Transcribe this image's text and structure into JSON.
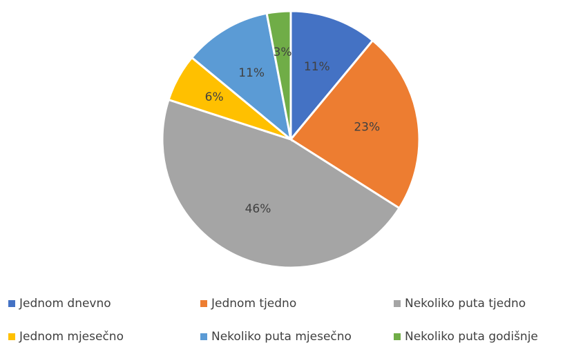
{
  "chart_data": {
    "type": "pie",
    "categories": [
      "Jednom dnevno",
      "Jednom tjedno",
      "Nekoliko puta tjedno",
      "Jednom mjesečno",
      "Nekoliko puta mjesečno",
      "Nekoliko puta godišnje"
    ],
    "values": [
      11,
      23,
      46,
      6,
      11,
      3
    ],
    "value_labels": [
      "11%",
      "23%",
      "46%",
      "6%",
      "11%",
      "3%"
    ],
    "colors": [
      "#4472c4",
      "#ed7d31",
      "#a5a5a5",
      "#ffc000",
      "#5b9bd5",
      "#70ad47"
    ],
    "legend": "bottom"
  }
}
